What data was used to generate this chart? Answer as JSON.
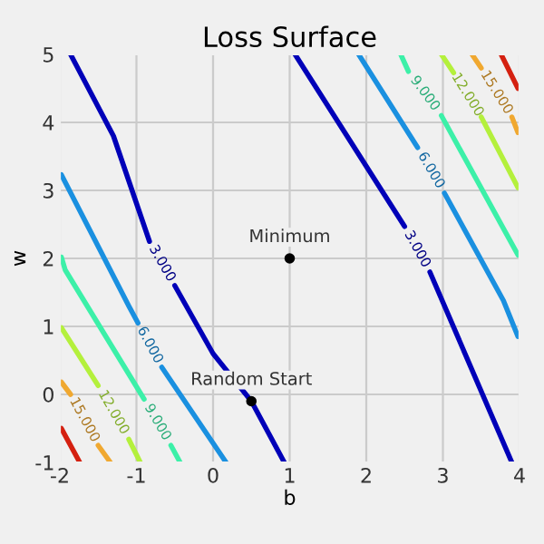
{
  "chart_data": {
    "type": "line",
    "title": "Loss Surface",
    "xlabel": "b",
    "ylabel": "w",
    "xlim": [
      -2,
      4
    ],
    "ylim": [
      -1,
      5
    ],
    "xticks": [
      -2,
      -1,
      0,
      1,
      2,
      3,
      4
    ],
    "yticks": [
      -1,
      0,
      1,
      2,
      3,
      4,
      5
    ],
    "grid": true,
    "line_style": "solid",
    "series": [
      {
        "name": "3.000",
        "color": "#0000b8",
        "x": [
          -1.86,
          -1.3,
          -0.83,
          null,
          -0.5,
          0,
          0.5,
          0.93
        ],
        "values": [
          5,
          3.8,
          2.25,
          null,
          1.6,
          0.6,
          -0.1,
          -1
        ]
      },
      {
        "name": "6.000",
        "color": "#1a90e0",
        "x": [
          -1.98,
          -1.1,
          -0.98,
          null,
          -0.67,
          0.17
        ],
        "values": [
          3.23,
          1.3,
          1.05,
          null,
          0.4,
          -1
        ]
      },
      {
        "name": "9.000",
        "color": "#3cf0a8",
        "x": [
          -1.98,
          -1.93,
          -0.9,
          null,
          -0.55,
          -0.43
        ],
        "values": [
          2.02,
          1.83,
          -0.07,
          null,
          -0.75,
          -1
        ]
      },
      {
        "name": "12.000",
        "color": "#b4f03c",
        "x": [
          -1.98,
          -1.5,
          null,
          -1.1,
          -0.95
        ],
        "values": [
          0.98,
          0.13,
          null,
          -0.66,
          -1
        ]
      },
      {
        "name": "15.000",
        "color": "#f0a830",
        "x": [
          -1.98,
          -1.86,
          null,
          -1.5,
          -1.34
        ],
        "values": [
          0.18,
          0.0,
          null,
          -0.75,
          -1
        ]
      },
      {
        "color": "#d42010",
        "x": [
          -1.98,
          -1.74
        ],
        "values": [
          -0.5,
          -1
        ]
      },
      {
        "name": "3.000",
        "color": "#0000b8",
        "x": [
          1.07,
          2.5,
          null,
          2.83,
          3.9
        ],
        "values": [
          5,
          2.47,
          null,
          1.8,
          -1
        ]
      },
      {
        "name": "6.000",
        "color": "#1a90e0",
        "x": [
          1.9,
          2.67,
          null,
          3.02,
          3.79,
          3.98
        ],
        "values": [
          5,
          3.63,
          null,
          2.96,
          1.38,
          0.85
        ]
      },
      {
        "name": "9.000",
        "color": "#3cf0a8",
        "x": [
          2.45,
          2.55,
          null,
          2.98,
          3.98
        ],
        "values": [
          5,
          4.75,
          null,
          4.1,
          2.05
        ]
      },
      {
        "name": "12.000",
        "color": "#b4f03c",
        "x": [
          2.98,
          3.14,
          null,
          3.5,
          3.98
        ],
        "values": [
          5,
          4.73,
          null,
          4.08,
          3.04
        ]
      },
      {
        "name": "15.000",
        "color": "#f0a830",
        "x": [
          3.38,
          3.5,
          null,
          3.9,
          3.98
        ],
        "values": [
          5,
          4.8,
          null,
          4.08,
          3.85
        ]
      },
      {
        "color": "#d42010",
        "x": [
          3.76,
          3.98
        ],
        "values": [
          5,
          4.5
        ]
      },
      {
        "type": "scatter",
        "name": "Minimum",
        "color": "#000000",
        "x": [
          1
        ],
        "values": [
          2
        ]
      },
      {
        "type": "scatter",
        "name": "Random Start",
        "color": "#000000",
        "x": [
          0.5
        ],
        "values": [
          -0.1
        ]
      }
    ]
  }
}
